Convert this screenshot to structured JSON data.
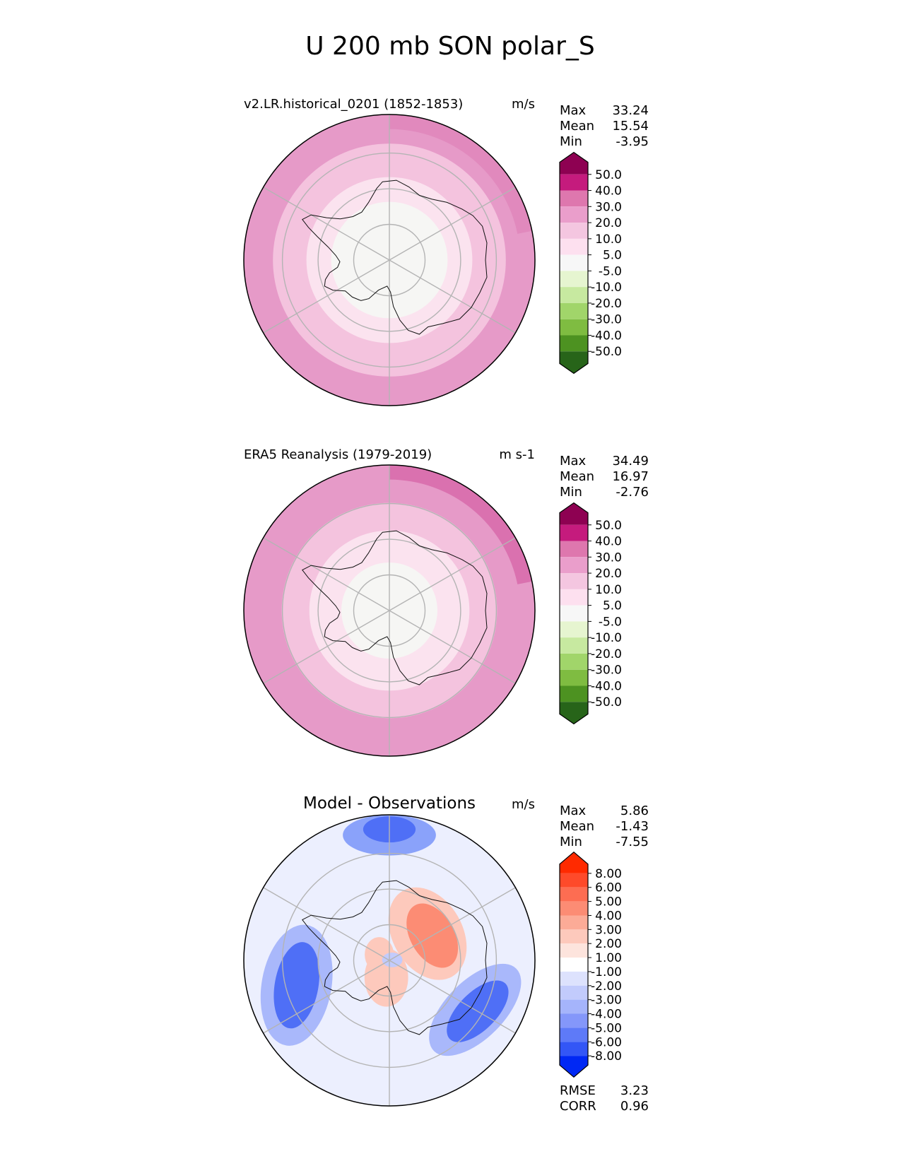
{
  "title": "U 200 mb SON polar_S",
  "chart_data": [
    {
      "type": "heatmap",
      "projection": "south-polar-stereographic",
      "title": "v2.LR.historical_0201 (1852-1853)",
      "units": "m/s",
      "stats": [
        {
          "label": "Max",
          "value": "33.24"
        },
        {
          "label": "Mean",
          "value": "15.54"
        },
        {
          "label": "Min",
          "value": "-3.95"
        }
      ],
      "colorbar": {
        "levels": [
          "50.0",
          "40.0",
          "30.0",
          "20.0",
          "10.0",
          "5.0",
          "-5.0",
          "-10.0",
          "-20.0",
          "-30.0",
          "-40.0",
          "-50.0"
        ],
        "colors": [
          "#8e0152",
          "#c51b7d",
          "#de77ae",
          "#ea9ecb",
          "#f4c6e0",
          "#fde0ef",
          "#f7f7f7",
          "#e6f5d0",
          "#c7e9a0",
          "#a1d56a",
          "#7fbc41",
          "#4d9221",
          "#276419"
        ]
      },
      "rings": [
        {
          "r": 1.0,
          "color": "#e69ac8"
        },
        {
          "r": 0.8,
          "color": "#f4c3de"
        },
        {
          "r": 0.57,
          "color": "#fbe3ef"
        },
        {
          "r": 0.4,
          "color": "#f6f6f4"
        }
      ]
    },
    {
      "type": "heatmap",
      "projection": "south-polar-stereographic",
      "title": "ERA5 Reanalysis (1979-2019)",
      "units": "m s-1",
      "stats": [
        {
          "label": "Max",
          "value": "34.49"
        },
        {
          "label": "Mean",
          "value": "16.97"
        },
        {
          "label": "Min",
          "value": "-2.76"
        }
      ],
      "colorbar": {
        "levels": [
          "50.0",
          "40.0",
          "30.0",
          "20.0",
          "10.0",
          "5.0",
          "-5.0",
          "-10.0",
          "-20.0",
          "-30.0",
          "-40.0",
          "-50.0"
        ],
        "colors": [
          "#8e0152",
          "#c51b7d",
          "#de77ae",
          "#ea9ecb",
          "#f4c6e0",
          "#fde0ef",
          "#f7f7f7",
          "#e6f5d0",
          "#c7e9a0",
          "#a1d56a",
          "#7fbc41",
          "#4d9221",
          "#276419"
        ]
      },
      "rings": [
        {
          "r": 1.0,
          "color": "#e69ac8"
        },
        {
          "r": 0.74,
          "color": "#f4c3de"
        },
        {
          "r": 0.55,
          "color": "#fbe3ef"
        },
        {
          "r": 0.33,
          "color": "#f6f6f4"
        }
      ]
    },
    {
      "type": "heatmap",
      "projection": "south-polar-stereographic",
      "title": "Model - Observations",
      "units": "m/s",
      "stats": [
        {
          "label": "Max",
          "value": "5.86"
        },
        {
          "label": "Mean",
          "value": "-1.43"
        },
        {
          "label": "Min",
          "value": "-7.55"
        }
      ],
      "metrics": [
        {
          "label": "RMSE",
          "value": "3.23"
        },
        {
          "label": "CORR",
          "value": "0.96"
        }
      ],
      "colorbar": {
        "levels": [
          "8.00",
          "6.00",
          "5.00",
          "4.00",
          "3.00",
          "2.00",
          "1.00",
          "-1.00",
          "-2.00",
          "-3.00",
          "-4.00",
          "-5.00",
          "-6.00",
          "-8.00"
        ],
        "colors": [
          "#ff2a00",
          "#fe4a2a",
          "#fd6d52",
          "#fc8c74",
          "#fcab97",
          "#fdc9bc",
          "#fde4dd",
          "#ffffff",
          "#dde2fd",
          "#c2cbfc",
          "#a5b4fb",
          "#8497fa",
          "#5e7af8",
          "#3356f6",
          "#0028f4"
        ]
      },
      "blobs": [
        {
          "ang": 90,
          "dist": 0.86,
          "rx": 0.32,
          "ry": 0.14,
          "rot": 0,
          "color": "#8aa2fa"
        },
        {
          "ang": 90,
          "dist": 0.9,
          "rx": 0.18,
          "ry": 0.09,
          "rot": 0,
          "color": "#4f6ff6"
        },
        {
          "ang": 195,
          "dist": 0.66,
          "rx": 0.24,
          "ry": 0.42,
          "rot": 10,
          "color": "#a9b8fb"
        },
        {
          "ang": 195,
          "dist": 0.66,
          "rx": 0.15,
          "ry": 0.3,
          "rot": 10,
          "color": "#4f6ff6"
        },
        {
          "ang": 330,
          "dist": 0.68,
          "rx": 0.4,
          "ry": 0.2,
          "rot": -45,
          "color": "#a9b8fb"
        },
        {
          "ang": 330,
          "dist": 0.7,
          "rx": 0.27,
          "ry": 0.13,
          "rot": -45,
          "color": "#4f6ff6"
        },
        {
          "ang": 35,
          "dist": 0.32,
          "rx": 0.24,
          "ry": 0.34,
          "rot": -30,
          "color": "#fdc9bc"
        },
        {
          "ang": 30,
          "dist": 0.34,
          "rx": 0.15,
          "ry": 0.24,
          "rot": -30,
          "color": "#fc8c74"
        },
        {
          "ang": 260,
          "dist": 0.12,
          "rx": 0.15,
          "ry": 0.2,
          "rot": 0,
          "color": "#fdc9bc"
        },
        {
          "ang": 150,
          "dist": 0.08,
          "rx": 0.1,
          "ry": 0.12,
          "rot": 0,
          "color": "#fdc9bc"
        },
        {
          "ang": 10,
          "dist": 0.02,
          "rx": 0.07,
          "ry": 0.05,
          "rot": 0,
          "color": "#c2cbfc"
        }
      ]
    }
  ]
}
